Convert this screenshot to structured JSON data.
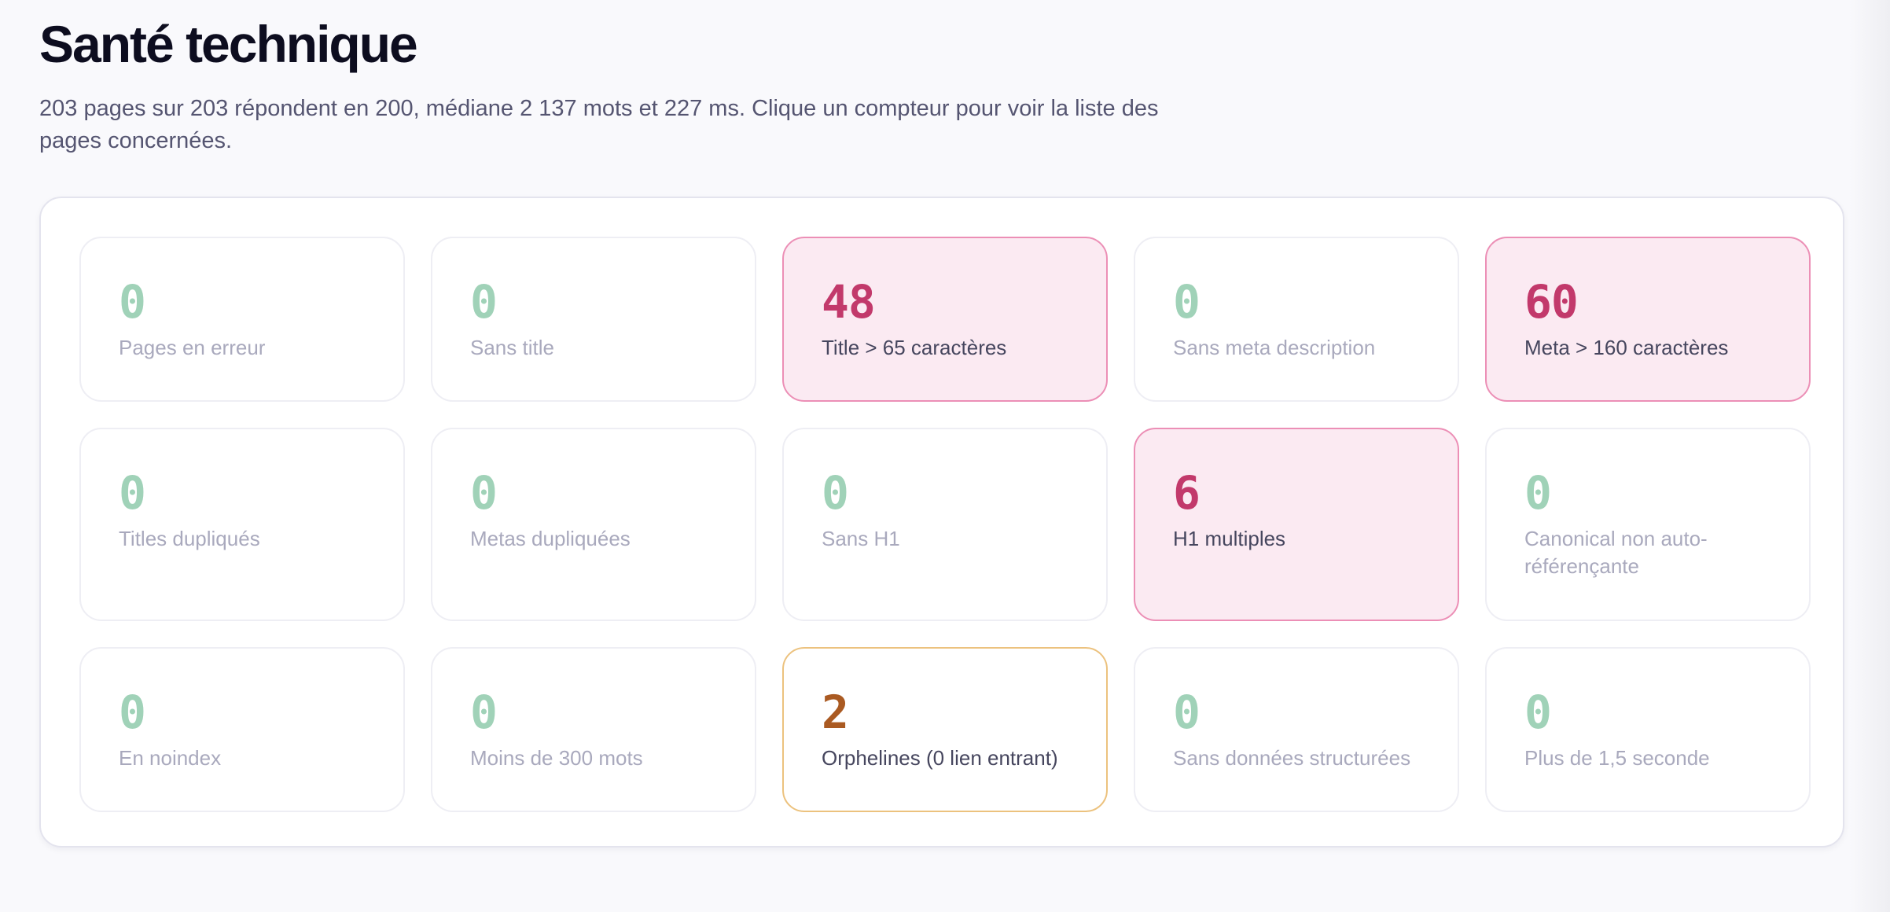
{
  "header": {
    "title": "Santé technique",
    "subtitle": "203 pages sur 203 répondent en 200, médiane 2 137 mots et 227 ms. Clique un compteur pour voir la liste des pages concernées."
  },
  "colors": {
    "ok": "#a0d2b8",
    "alert": "#c2396b",
    "alert_bg": "#fbeaf2",
    "warn": "#aa5a22",
    "warn_border": "#ecc27e"
  },
  "cards": [
    {
      "count": "0",
      "label": "Pages en erreur",
      "status": "ok"
    },
    {
      "count": "0",
      "label": "Sans title",
      "status": "ok"
    },
    {
      "count": "48",
      "label": "Title > 65 caractères",
      "status": "alert"
    },
    {
      "count": "0",
      "label": "Sans meta description",
      "status": "ok"
    },
    {
      "count": "60",
      "label": "Meta > 160 caractères",
      "status": "alert"
    },
    {
      "count": "0",
      "label": "Titles dupliqués",
      "status": "ok"
    },
    {
      "count": "0",
      "label": "Metas dupliquées",
      "status": "ok"
    },
    {
      "count": "0",
      "label": "Sans H1",
      "status": "ok"
    },
    {
      "count": "6",
      "label": "H1 multiples",
      "status": "alert"
    },
    {
      "count": "0",
      "label": "Canonical non auto-référençante",
      "status": "ok"
    },
    {
      "count": "0",
      "label": "En noindex",
      "status": "ok"
    },
    {
      "count": "0",
      "label": "Moins de 300 mots",
      "status": "ok"
    },
    {
      "count": "2",
      "label": "Orphelines (0 lien entrant)",
      "status": "warn"
    },
    {
      "count": "0",
      "label": "Sans données structurées",
      "status": "ok"
    },
    {
      "count": "0",
      "label": "Plus de 1,5 seconde",
      "status": "ok"
    }
  ]
}
